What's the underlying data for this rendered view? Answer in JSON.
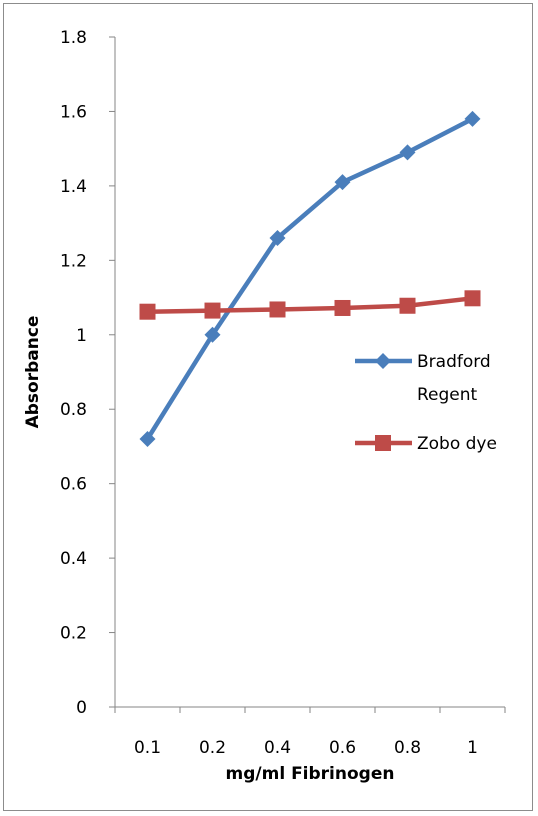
{
  "chart_data": {
    "type": "line",
    "title": "",
    "xlabel": "mg/ml Fibrinogen",
    "ylabel": "Absorbance",
    "categories": [
      "0.1",
      "0.2",
      "0.4",
      "0.6",
      "0.8",
      "1"
    ],
    "ylim": [
      0,
      1.8
    ],
    "yticks": [
      "0",
      "0.2",
      "0.4",
      "0.6",
      "0.8",
      "1",
      "1.2",
      "1.4",
      "1.6",
      "1.8"
    ],
    "grid": false,
    "legend_position": "right",
    "series": [
      {
        "name": "Bradford Regent",
        "values": [
          0.72,
          1.0,
          1.26,
          1.41,
          1.49,
          1.58
        ],
        "color": "#4a7ebb",
        "marker": "diamond"
      },
      {
        "name": "Zobo dye",
        "values": [
          1.062,
          1.065,
          1.068,
          1.072,
          1.078,
          1.098
        ],
        "color": "#be4b48",
        "marker": "square"
      }
    ]
  }
}
